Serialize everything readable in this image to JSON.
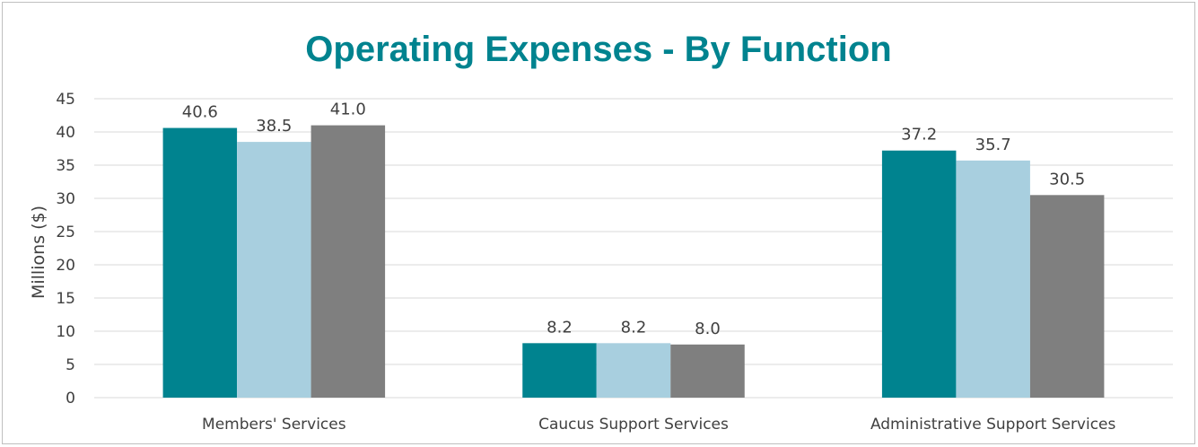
{
  "chart_data": {
    "type": "bar",
    "title": "Operating Expenses - By Function",
    "xlabel": "",
    "ylabel": "Millions ($)",
    "ylim": [
      0,
      45
    ],
    "yticks": [
      0,
      5,
      10,
      15,
      20,
      25,
      30,
      35,
      40,
      45
    ],
    "grid": true,
    "legend": "none",
    "categories": [
      "Members' Services",
      "Caucus Support Services",
      "Administrative Support Services"
    ],
    "series": [
      {
        "values": [
          40.6,
          8.2,
          37.2
        ],
        "labels": [
          "40.6",
          "8.2",
          "37.2"
        ],
        "color": "#00838f"
      },
      {
        "values": [
          38.5,
          8.2,
          35.7
        ],
        "labels": [
          "38.5",
          "8.2",
          "35.7"
        ],
        "color": "#a8cfdf"
      },
      {
        "values": [
          41.0,
          8.0,
          30.5
        ],
        "labels": [
          "41.0",
          "8.0",
          "30.5"
        ],
        "color": "#7f7f7f"
      }
    ]
  }
}
